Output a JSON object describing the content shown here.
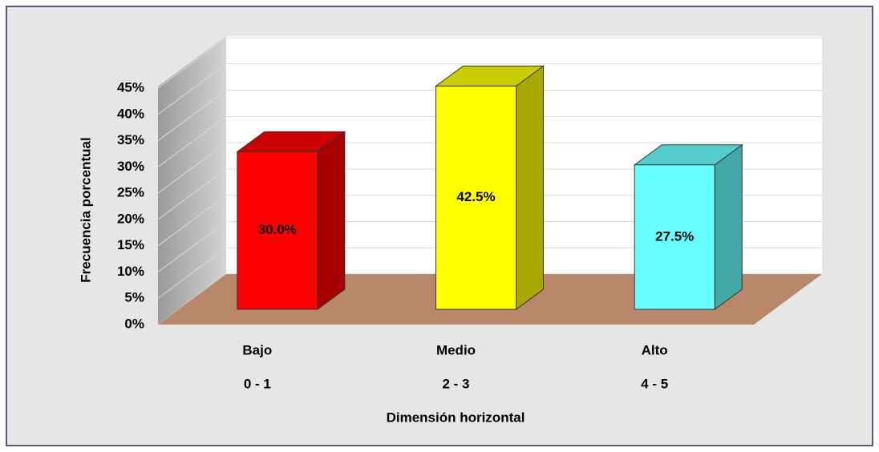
{
  "chart_data": {
    "type": "bar3d",
    "y_label": "Frecuencia porcentual",
    "x_label": "Dimensión horizontal",
    "categories": [
      [
        "Bajo",
        "0 - 1"
      ],
      [
        "Medio",
        "2 - 3"
      ],
      [
        "Alto",
        "4 - 5"
      ]
    ],
    "values": [
      30,
      42.5,
      27.5
    ],
    "value_labels": [
      "30.0%",
      "42.5%",
      "27.5%"
    ],
    "colors": [
      "#ff0000",
      "#ffff00",
      "#66ffff"
    ],
    "ylim": [
      0,
      45
    ],
    "yticks": [
      {
        "value": 0,
        "label": "0%"
      },
      {
        "value": 5,
        "label": "5%"
      },
      {
        "value": 10,
        "label": "10%"
      },
      {
        "value": 15,
        "label": "15%"
      },
      {
        "value": 20,
        "label": "20%"
      },
      {
        "value": 25,
        "label": "25%"
      },
      {
        "value": 30,
        "label": "30%"
      },
      {
        "value": 35,
        "label": "35%"
      },
      {
        "value": 40,
        "label": "40%"
      },
      {
        "value": 45,
        "label": "45%"
      }
    ],
    "grid": true
  }
}
